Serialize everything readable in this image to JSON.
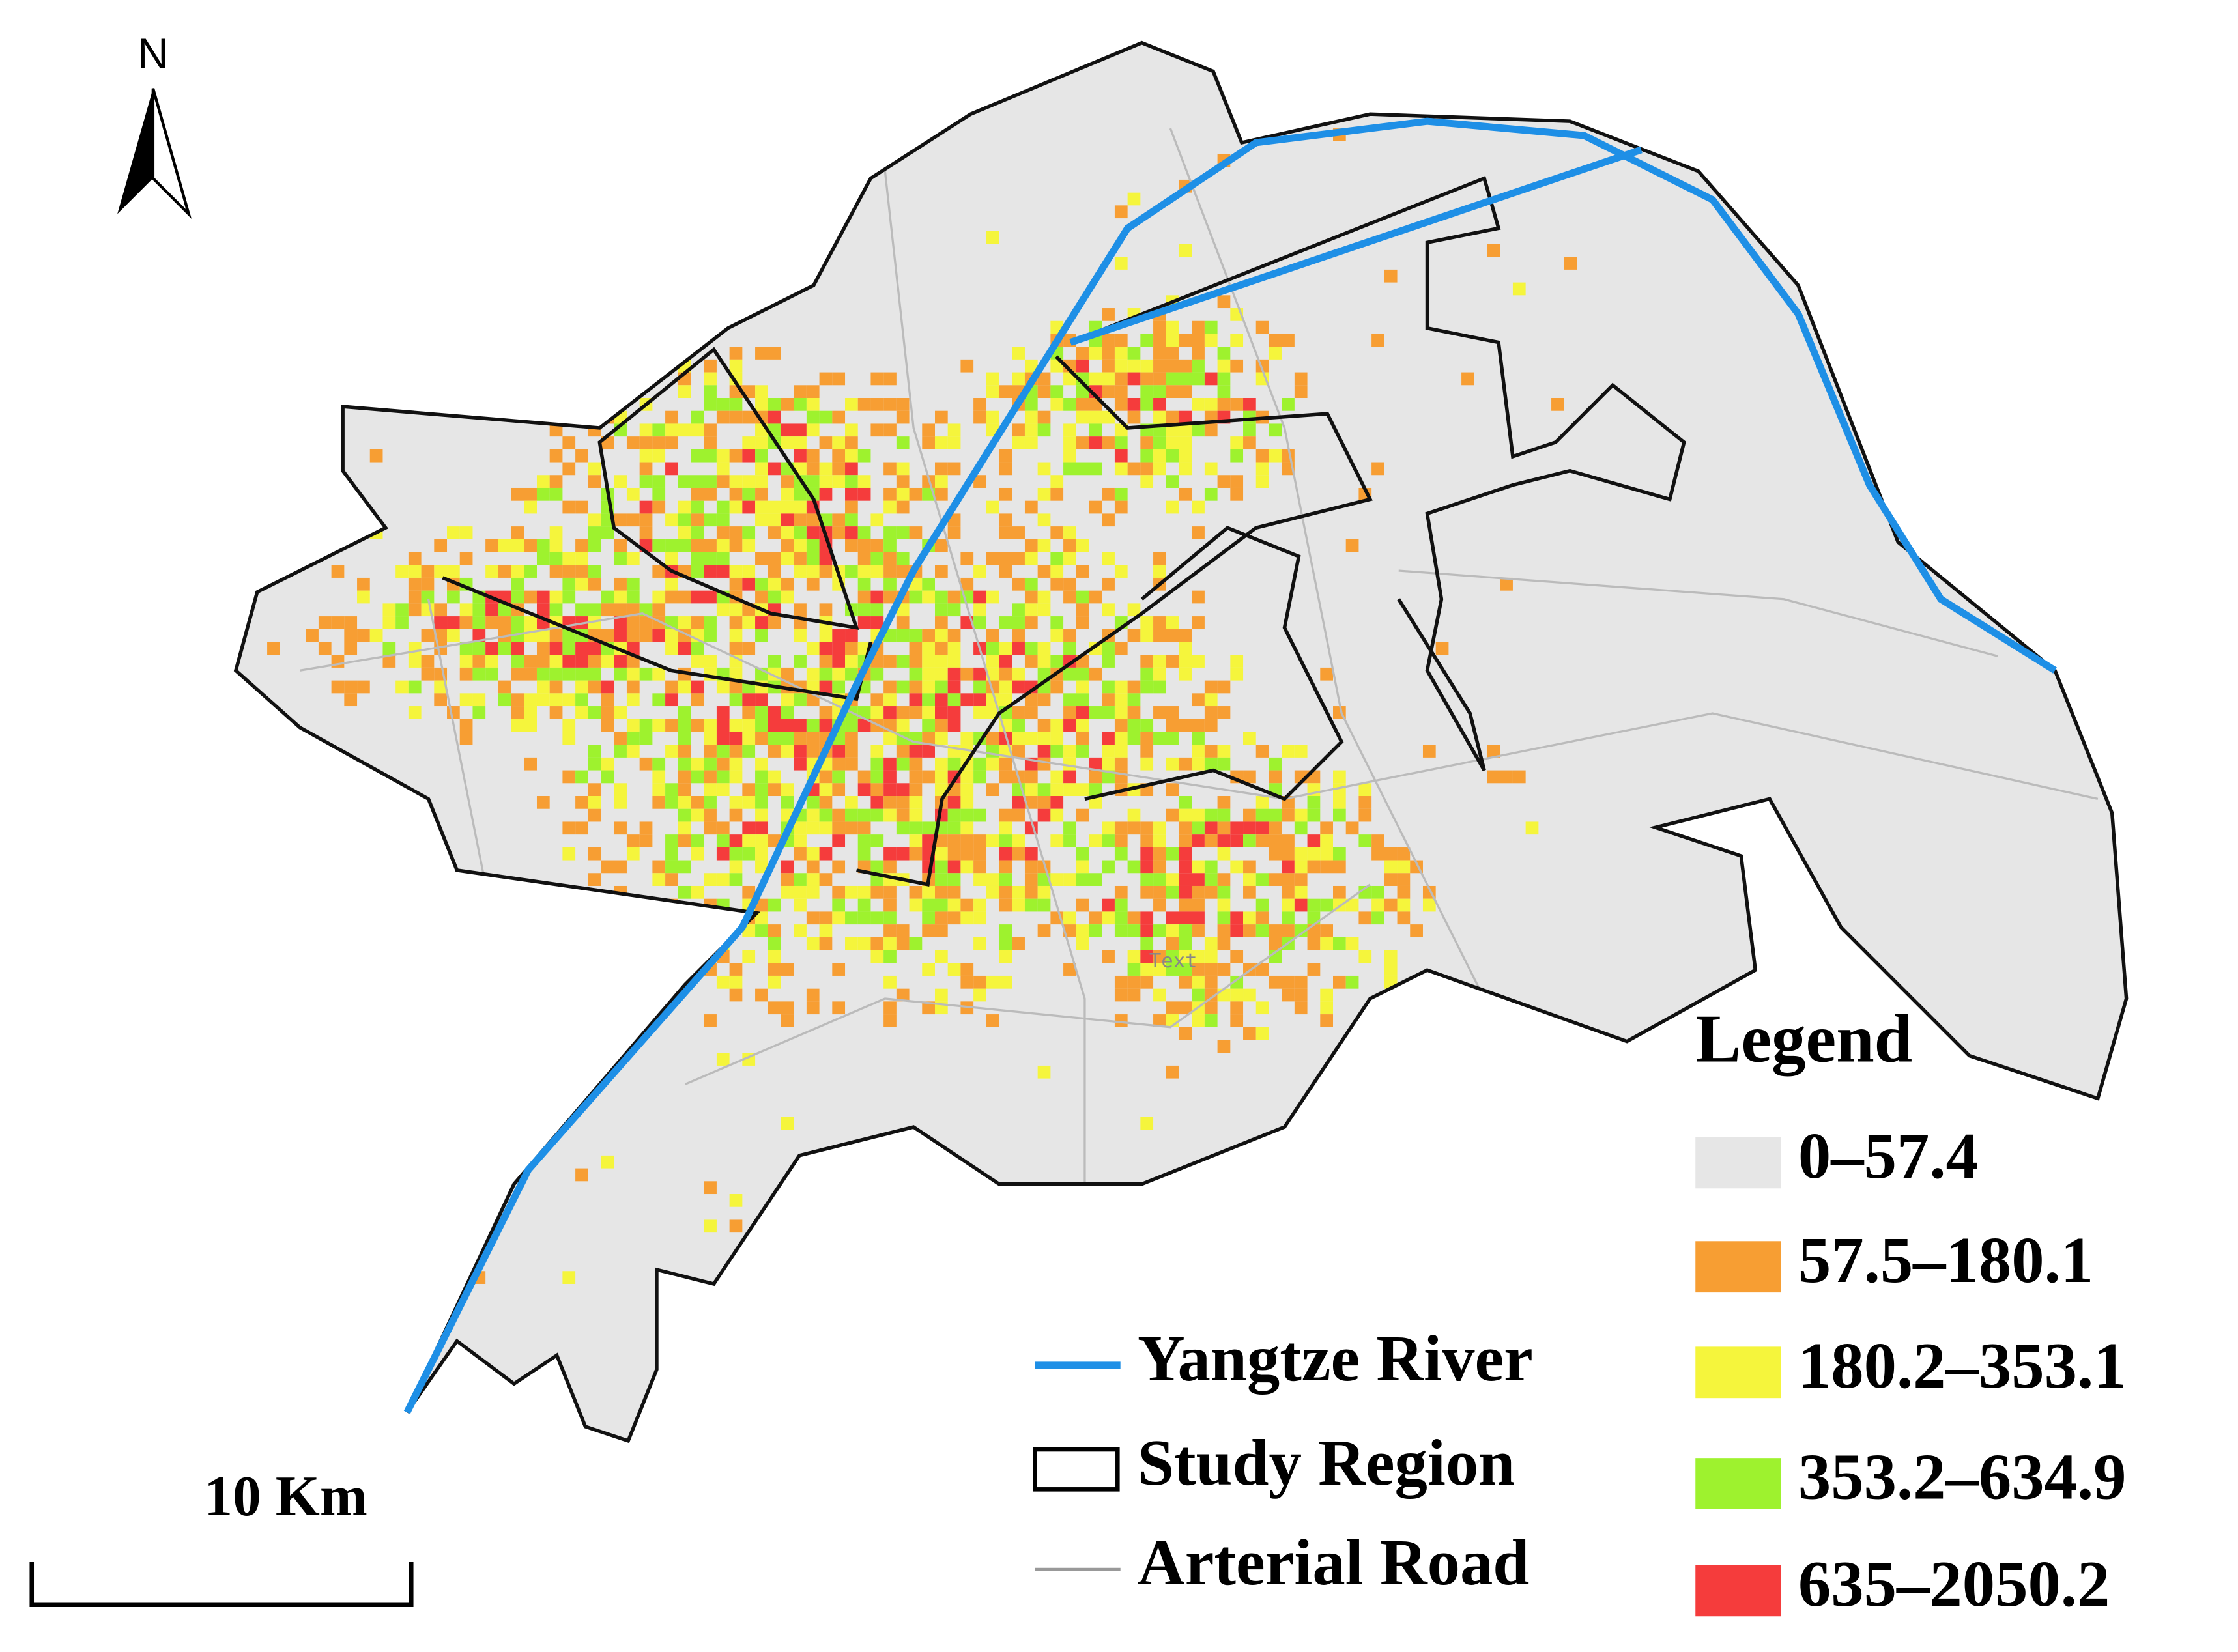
{
  "north_label": "N",
  "scale_bar": "10 Km",
  "annotation": "Text",
  "legend": {
    "title": "Legend",
    "classes": [
      {
        "label": "0–57.4",
        "color": "#e6e6e6"
      },
      {
        "label": "57.5–180.1",
        "color": "#f79e33"
      },
      {
        "label": "180.2–353.1",
        "color": "#f5f53c"
      },
      {
        "label": "353.2–634.9",
        "color": "#9ef22e"
      },
      {
        "label": "635–2050.2",
        "color": "#f53c3c"
      }
    ]
  },
  "layers": [
    {
      "label": "Yangtze River",
      "color": "#1e8fe6"
    },
    {
      "label": "Study Region"
    },
    {
      "label": "Arterial  Road"
    }
  ]
}
